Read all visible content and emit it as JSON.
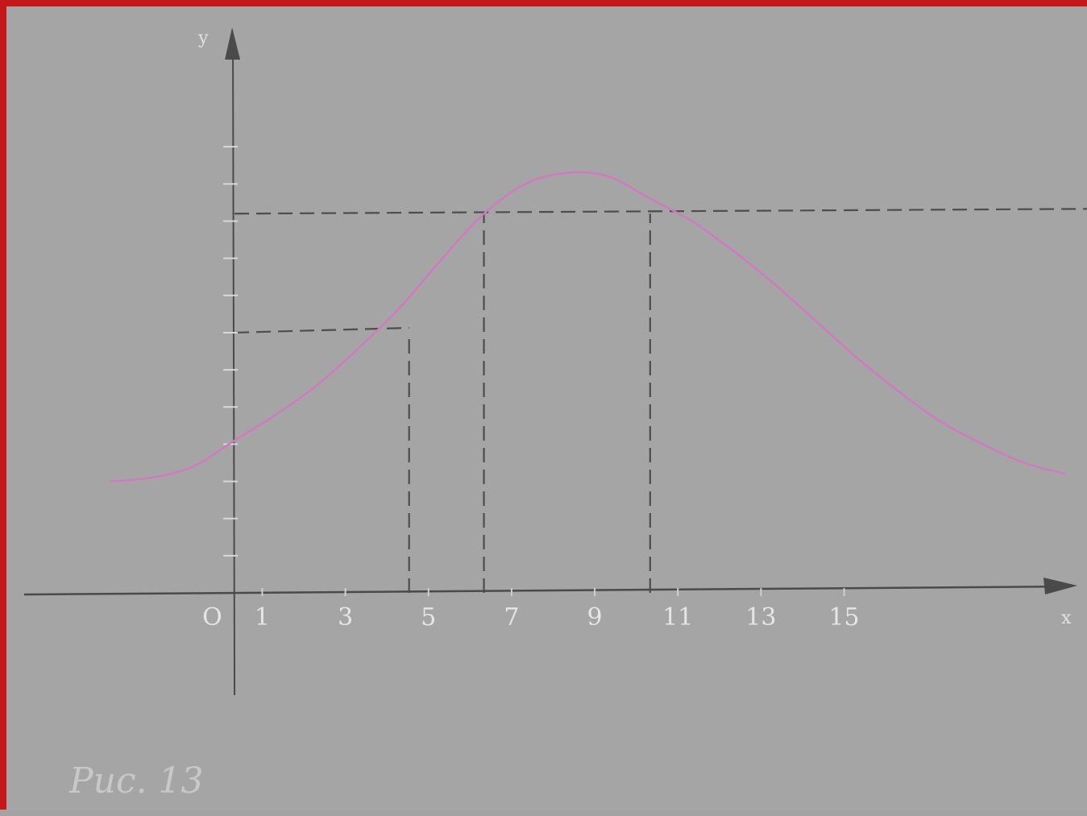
{
  "frame": {
    "border_color": "#c4181b",
    "background": "#a5a5a5"
  },
  "chart_data": {
    "type": "line",
    "caption": "Рис. 13",
    "xlabel": "x",
    "ylabel": "y",
    "origin_label": "O",
    "xlim": [
      -8,
      31
    ],
    "ylim": [
      -6,
      15.6
    ],
    "x_tick_labels": [
      {
        "x": 1,
        "label": "1"
      },
      {
        "x": 4,
        "label": "3"
      },
      {
        "x": 7,
        "label": "5"
      },
      {
        "x": 10,
        "label": "7"
      },
      {
        "x": 13,
        "label": "9"
      },
      {
        "x": 16,
        "label": "11"
      },
      {
        "x": 19,
        "label": "13"
      },
      {
        "x": 22,
        "label": "15"
      }
    ],
    "y_ticks": [
      1,
      2,
      3,
      4,
      5,
      6,
      7,
      8,
      9,
      10,
      11,
      12
    ],
    "curve": {
      "color": "#d07ac0",
      "points": [
        [
          -4.5,
          3.0
        ],
        [
          -3,
          3.1
        ],
        [
          -1.5,
          3.4
        ],
        [
          0,
          4.1
        ],
        [
          1.5,
          4.8
        ],
        [
          3,
          5.6
        ],
        [
          4.5,
          6.6
        ],
        [
          6,
          7.7
        ],
        [
          7.5,
          9.0
        ],
        [
          9,
          10.2
        ],
        [
          10.5,
          11.0
        ],
        [
          12,
          11.3
        ],
        [
          13.5,
          11.2
        ],
        [
          15,
          10.6
        ],
        [
          16.5,
          10.0
        ],
        [
          18,
          9.2
        ],
        [
          19.5,
          8.3
        ],
        [
          21,
          7.3
        ],
        [
          22.5,
          6.3
        ],
        [
          24,
          5.4
        ],
        [
          25.5,
          4.6
        ],
        [
          27,
          4.0
        ],
        [
          28.5,
          3.5
        ],
        [
          30,
          3.2
        ]
      ]
    },
    "guide_lines": [
      {
        "kind": "horizontal",
        "y": 10.2,
        "x_from": 0,
        "x_to": 31
      },
      {
        "kind": "horizontal",
        "y": 7.0,
        "x_from": 0,
        "x_to": 6.3
      },
      {
        "kind": "vertical",
        "x": 6.3,
        "y_from": 0,
        "y_to": 7.0
      },
      {
        "kind": "vertical",
        "x": 9.0,
        "y_from": 0,
        "y_to": 10.2
      },
      {
        "kind": "vertical",
        "x": 15.0,
        "y_from": 0,
        "y_to": 10.2
      }
    ]
  }
}
